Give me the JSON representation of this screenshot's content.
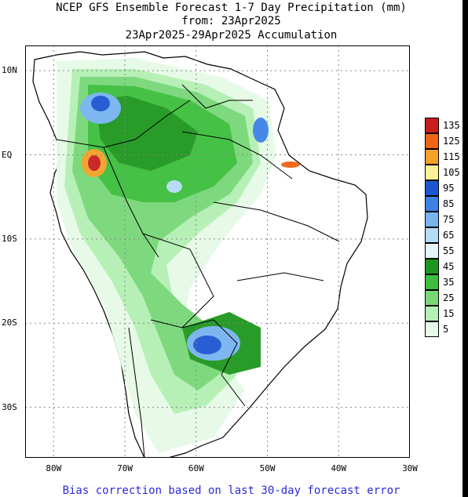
{
  "title": {
    "line1": "NCEP GFS Ensemble Forecast 1-7 Day Precipitation (mm)",
    "line2": "from: 23Apr2025",
    "line3": "23Apr2025-29Apr2025 Accumulation"
  },
  "footer": "Bias correction based on last 30-day forecast error",
  "lat_ticks": [
    {
      "label": "10N",
      "lat": 10
    },
    {
      "label": "EQ",
      "lat": 0
    },
    {
      "label": "10S",
      "lat": -10
    },
    {
      "label": "20S",
      "lat": -20
    },
    {
      "label": "30S",
      "lat": -30
    }
  ],
  "lon_ticks": [
    {
      "label": "80W",
      "lon": -80
    },
    {
      "label": "70W",
      "lon": -70
    },
    {
      "label": "60W",
      "lon": -60
    },
    {
      "label": "50W",
      "lon": -50
    },
    {
      "label": "40W",
      "lon": -40
    },
    {
      "label": "30W",
      "lon": -30
    }
  ],
  "extent": {
    "lon_min": -84,
    "lon_max": -30,
    "lat_min": -36,
    "lat_max": 13
  },
  "legend": [
    {
      "label": "135",
      "color": "#c81e1e"
    },
    {
      "label": "125",
      "color": "#f06414"
    },
    {
      "label": "115",
      "color": "#f5a028"
    },
    {
      "label": "105",
      "color": "#faf098"
    },
    {
      "label": "95",
      "color": "#1e55d2"
    },
    {
      "label": "85",
      "color": "#3c82e6"
    },
    {
      "label": "75",
      "color": "#78b4f0"
    },
    {
      "label": "65",
      "color": "#b4dcf5"
    },
    {
      "label": "55",
      "color": "#e1f5fa"
    },
    {
      "label": "45",
      "color": "#1e961e"
    },
    {
      "label": "35",
      "color": "#3cbe3c"
    },
    {
      "label": "25",
      "color": "#78d778"
    },
    {
      "label": "15",
      "color": "#b4f0b4"
    },
    {
      "label": "5",
      "color": "#e6fae6"
    }
  ]
}
